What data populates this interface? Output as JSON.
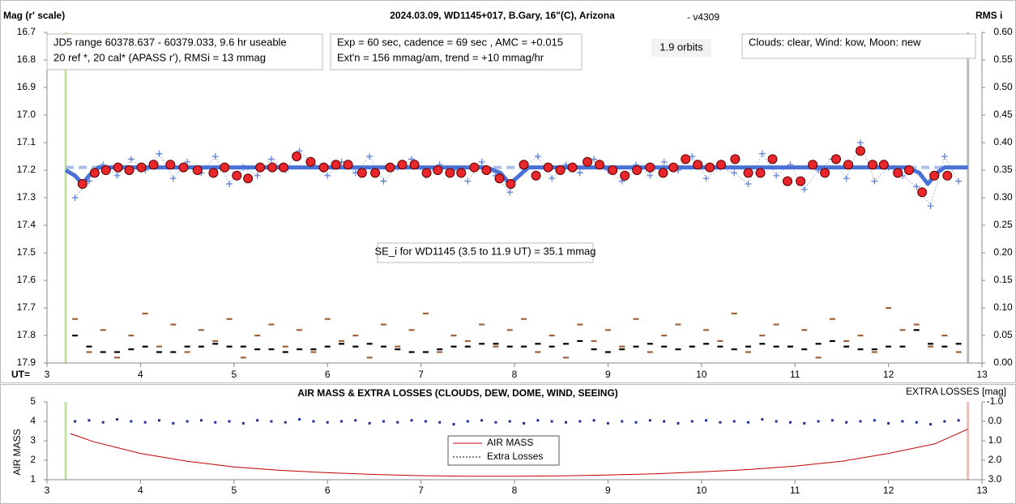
{
  "chart_data": [
    {
      "type": "scatter",
      "title": "2024.03.09, WD1145+017, B.Gary, 16\"(C), Arizona",
      "subtitle": "- v4309",
      "ylabel": "Mag (r' scale)",
      "y2label": "RMS i",
      "xlabel": "UT=",
      "xlim": [
        3,
        13
      ],
      "xticks": [
        3,
        4,
        5,
        6,
        7,
        8,
        9,
        10,
        11,
        12,
        13
      ],
      "ylim": [
        17.9,
        16.7
      ],
      "yticks": [
        16.7,
        16.8,
        16.9,
        {
          "value": 17,
          "label": "17.0"
        },
        17.1,
        17.2,
        17.3,
        17.4,
        17.5,
        17.6,
        17.7,
        17.8,
        17.9
      ],
      "y2lim": [
        0,
        0.6
      ],
      "y2ticks": [
        {
          "value": 0.6,
          "label": "0.60"
        },
        0.55,
        {
          "value": 0.5,
          "label": "0.50"
        },
        0.45,
        {
          "value": 0.4,
          "label": "0.40"
        },
        0.35,
        {
          "value": 0.3,
          "label": "0.30"
        },
        0.25,
        {
          "value": 0.2,
          "label": "0.20"
        },
        0.15,
        {
          "value": 0.1,
          "label": "0.10"
        },
        0.05,
        {
          "value": 0,
          "label": "0.00"
        }
      ],
      "annotations": [
        [
          "JD5 range 60378.637 - 60379.033, 9.6 hr useable",
          "20 ref *, 20 cal*  (APASS r'), RMSi = 13 mmag"
        ],
        [
          "Exp = 60 sec, cadence = 69 sec , AMC = +0.015",
          "Ext'n = 156 mmag/am, trend = +10 mmag/hr"
        ],
        [
          "1.9 orbits"
        ],
        [
          "Clouds: clear, Wind:  kow, Moon:  new"
        ],
        [
          "SE_i for WD1145 (3.5 to 11.9 UT) = 35.1 mmag"
        ]
      ],
      "vlines": [
        {
          "x": 3.2,
          "color": "#c5e0a5"
        },
        {
          "x": 12.85,
          "color": "#bbbbbb"
        }
      ],
      "series": [
        {
          "style": "dashed-line",
          "color": "#a9bde8",
          "x": [
            3.2,
            12.85
          ],
          "values": [
            17.19,
            17.19
          ]
        },
        {
          "style": "cross",
          "color": "#5b7fd4",
          "connect": true,
          "x": [
            3.3,
            3.45,
            3.6,
            3.75,
            3.9,
            4.05,
            4.2,
            4.35,
            4.5,
            4.65,
            4.8,
            4.95,
            5.1,
            5.25,
            5.4,
            5.55,
            5.7,
            5.85,
            6.0,
            6.15,
            6.3,
            6.45,
            6.6,
            6.75,
            6.9,
            7.05,
            7.2,
            7.35,
            7.5,
            7.65,
            7.8,
            7.95,
            8.1,
            8.25,
            8.4,
            8.55,
            8.7,
            8.85,
            9.0,
            9.15,
            9.3,
            9.45,
            9.6,
            9.75,
            9.9,
            10.05,
            10.2,
            10.35,
            10.5,
            10.65,
            10.8,
            10.95,
            11.1,
            11.25,
            11.4,
            11.55,
            11.7,
            11.85,
            12.0,
            12.15,
            12.3,
            12.45,
            12.6,
            12.75
          ],
          "values": [
            17.3,
            17.24,
            17.18,
            17.22,
            17.16,
            17.2,
            17.14,
            17.23,
            17.17,
            17.21,
            17.15,
            17.25,
            17.19,
            17.22,
            17.16,
            17.2,
            17.13,
            17.18,
            17.22,
            17.17,
            17.21,
            17.15,
            17.24,
            17.19,
            17.16,
            17.22,
            17.18,
            17.2,
            17.24,
            17.17,
            17.22,
            17.28,
            17.19,
            17.15,
            17.23,
            17.18,
            17.21,
            17.16,
            17.2,
            17.24,
            17.18,
            17.22,
            17.17,
            17.2,
            17.15,
            17.23,
            17.19,
            17.21,
            17.25,
            17.14,
            17.22,
            17.18,
            17.27,
            17.2,
            17.16,
            17.23,
            17.1,
            17.24,
            17.19,
            17.22,
            17.26,
            17.33,
            17.15,
            17.24
          ]
        },
        {
          "style": "line",
          "color": "#4a72d6",
          "x": [
            3.2,
            3.3,
            3.38,
            3.45,
            3.55,
            7.7,
            7.85,
            7.95,
            8.05,
            8.15,
            12.2,
            12.33,
            12.42,
            12.52,
            12.6,
            12.85
          ],
          "values": [
            17.2,
            17.22,
            17.25,
            17.22,
            17.19,
            17.19,
            17.21,
            17.25,
            17.22,
            17.19,
            17.19,
            17.21,
            17.25,
            17.21,
            17.19,
            17.19
          ]
        },
        {
          "style": "circle",
          "color": "#e8262b",
          "x": [
            3.38,
            3.51,
            3.63,
            3.76,
            3.88,
            4.01,
            4.14,
            4.32,
            4.46,
            4.61,
            4.78,
            4.9,
            5.03,
            5.15,
            5.28,
            5.41,
            5.53,
            5.67,
            5.82,
            5.96,
            6.09,
            6.22,
            6.37,
            6.51,
            6.67,
            6.8,
            6.93,
            7.06,
            7.18,
            7.31,
            7.43,
            7.57,
            7.7,
            7.84,
            7.96,
            8.1,
            8.23,
            8.36,
            8.49,
            8.62,
            8.78,
            8.91,
            9.05,
            9.18,
            9.31,
            9.45,
            9.59,
            9.7,
            9.83,
            9.96,
            10.09,
            10.21,
            10.36,
            10.5,
            10.63,
            10.76,
            10.92,
            11.06,
            11.19,
            11.32,
            11.44,
            11.57,
            11.7,
            11.83,
            11.95,
            12.1,
            12.22,
            12.36,
            12.49,
            12.63
          ],
          "values": [
            17.25,
            17.21,
            17.2,
            17.19,
            17.2,
            17.19,
            17.18,
            17.18,
            17.19,
            17.2,
            17.21,
            17.19,
            17.22,
            17.23,
            17.19,
            17.19,
            17.19,
            17.15,
            17.17,
            17.19,
            17.18,
            17.18,
            17.21,
            17.21,
            17.19,
            17.18,
            17.18,
            17.21,
            17.2,
            17.21,
            17.21,
            17.19,
            17.2,
            17.23,
            17.25,
            17.18,
            17.22,
            17.19,
            17.2,
            17.19,
            17.17,
            17.18,
            17.2,
            17.22,
            17.2,
            17.19,
            17.21,
            17.19,
            17.16,
            17.18,
            17.19,
            17.18,
            17.16,
            17.21,
            17.21,
            17.16,
            17.24,
            17.24,
            17.18,
            17.21,
            17.16,
            17.18,
            17.13,
            17.18,
            17.18,
            17.21,
            17.2,
            17.28,
            17.22,
            17.22
          ]
        },
        {
          "style": "dash",
          "color": "#a0623a",
          "axis": "y2",
          "x": [
            3.3,
            3.45,
            3.6,
            3.75,
            3.9,
            4.05,
            4.2,
            4.35,
            4.5,
            4.65,
            4.8,
            4.95,
            5.1,
            5.25,
            5.4,
            5.55,
            5.7,
            5.85,
            6.0,
            6.15,
            6.3,
            6.45,
            6.6,
            6.75,
            6.9,
            7.05,
            7.2,
            7.35,
            7.5,
            7.65,
            7.8,
            7.95,
            8.1,
            8.25,
            8.4,
            8.55,
            8.7,
            8.85,
            9.0,
            9.15,
            9.3,
            9.45,
            9.6,
            9.75,
            9.9,
            10.05,
            10.2,
            10.35,
            10.5,
            10.65,
            10.8,
            10.95,
            11.1,
            11.25,
            11.4,
            11.55,
            11.7,
            11.85,
            12.0,
            12.15,
            12.3,
            12.45,
            12.6,
            12.75
          ],
          "values": [
            0.08,
            0.02,
            0.06,
            0.01,
            0.05,
            0.09,
            0.03,
            0.07,
            0.02,
            0.06,
            0.04,
            0.08,
            0.01,
            0.05,
            0.07,
            0.03,
            0.06,
            0.02,
            0.08,
            0.04,
            0.05,
            0.01,
            0.07,
            0.03,
            0.06,
            0.09,
            0.02,
            0.05,
            0.04,
            0.07,
            0.03,
            0.06,
            0.08,
            0.02,
            0.05,
            0.01,
            0.07,
            0.04,
            0.06,
            0.03,
            0.08,
            0.02,
            0.05,
            0.07,
            0.03,
            0.06,
            0.04,
            0.09,
            0.02,
            0.05,
            0.07,
            0.03,
            0.06,
            0.01,
            0.08,
            0.04,
            0.05,
            0.02,
            0.1,
            0.06,
            0.07,
            0.03,
            0.05,
            0.02
          ]
        },
        {
          "style": "dash",
          "color": "#000000",
          "axis": "y2",
          "x": [
            3.3,
            3.45,
            3.6,
            3.75,
            3.9,
            4.05,
            4.2,
            4.35,
            4.5,
            4.65,
            4.8,
            4.95,
            5.1,
            5.25,
            5.4,
            5.55,
            5.7,
            5.85,
            6.0,
            6.15,
            6.3,
            6.45,
            6.6,
            6.75,
            6.9,
            7.05,
            7.2,
            7.35,
            7.5,
            7.65,
            7.8,
            7.95,
            8.1,
            8.25,
            8.4,
            8.55,
            8.7,
            8.85,
            9.0,
            9.15,
            9.3,
            9.45,
            9.6,
            9.75,
            9.9,
            10.05,
            10.2,
            10.35,
            10.5,
            10.65,
            10.8,
            10.95,
            11.1,
            11.25,
            11.4,
            11.55,
            11.7,
            11.85,
            12.0,
            12.15,
            12.3,
            12.45,
            12.6,
            12.75
          ],
          "values": [
            0.05,
            0.03,
            0.02,
            0.02,
            0.025,
            0.03,
            0.02,
            0.02,
            0.03,
            0.03,
            0.035,
            0.03,
            0.03,
            0.025,
            0.025,
            0.02,
            0.025,
            0.025,
            0.03,
            0.035,
            0.03,
            0.035,
            0.03,
            0.025,
            0.02,
            0.02,
            0.025,
            0.03,
            0.03,
            0.035,
            0.035,
            0.03,
            0.03,
            0.035,
            0.03,
            0.035,
            0.04,
            0.025,
            0.02,
            0.025,
            0.03,
            0.035,
            0.03,
            0.025,
            0.03,
            0.035,
            0.03,
            0.025,
            0.03,
            0.035,
            0.03,
            0.03,
            0.025,
            0.035,
            0.04,
            0.03,
            0.025,
            0.025,
            0.03,
            0.03,
            0.06,
            0.035,
            0.03,
            0.035
          ]
        }
      ]
    },
    {
      "type": "line",
      "title": "AIR MASS & EXTRA LOSSES (CLOUDS, DEW, DOME, WIND, SEEING)",
      "ylabel": "AIR MASS",
      "y2label": "EXTRA LOSSES [mag]",
      "xlim": [
        3,
        13
      ],
      "xticks": [
        3,
        4,
        5,
        6,
        7,
        8,
        9,
        10,
        11,
        12,
        13
      ],
      "ylim": [
        1,
        5
      ],
      "yticks": [
        1,
        2,
        3,
        4,
        5
      ],
      "y2lim": [
        3,
        -1
      ],
      "y2ticks": [
        {
          "value": -1,
          "label": "-1.0"
        },
        {
          "value": 0,
          "label": "0.0"
        },
        {
          "value": 1,
          "label": "1.0"
        },
        {
          "value": 2,
          "label": "2.0"
        },
        {
          "value": 3,
          "label": "3.0"
        }
      ],
      "vlines": [
        {
          "x": 3.2,
          "color": "#c5e0a5"
        },
        {
          "x": 12.85,
          "color": "#f4b6b6"
        }
      ],
      "series": [
        {
          "name": "AIR MASS",
          "style": "line",
          "color": "#c00000",
          "x": [
            3.25,
            3.5,
            4,
            4.5,
            5,
            5.5,
            6,
            6.5,
            7,
            7.5,
            8,
            8.5,
            9,
            9.5,
            10,
            10.5,
            11,
            11.5,
            12,
            12.5,
            12.85
          ],
          "values": [
            3.37,
            2.95,
            2.35,
            1.95,
            1.66,
            1.48,
            1.36,
            1.27,
            1.21,
            1.18,
            1.18,
            1.2,
            1.24,
            1.3,
            1.4,
            1.52,
            1.7,
            1.95,
            2.35,
            2.85,
            3.6
          ]
        },
        {
          "name": "Extra Losses",
          "style": "dot",
          "color": "#1f2e9a",
          "axis": "y2",
          "x": [
            3.3,
            3.45,
            3.6,
            3.75,
            3.9,
            4.05,
            4.2,
            4.35,
            4.5,
            4.65,
            4.8,
            4.95,
            5.1,
            5.25,
            5.4,
            5.55,
            5.7,
            5.85,
            6.0,
            6.15,
            6.3,
            6.45,
            6.6,
            6.75,
            6.9,
            7.05,
            7.2,
            7.35,
            7.5,
            7.65,
            7.8,
            7.95,
            8.1,
            8.25,
            8.4,
            8.55,
            8.7,
            8.85,
            9.0,
            9.15,
            9.3,
            9.45,
            9.6,
            9.75,
            9.9,
            10.05,
            10.2,
            10.35,
            10.5,
            10.65,
            10.8,
            10.95,
            11.1,
            11.25,
            11.4,
            11.55,
            11.7,
            11.85,
            12.0,
            12.15,
            12.3,
            12.45,
            12.6,
            12.75
          ],
          "values": [
            0.0,
            -0.05,
            0.05,
            -0.1,
            0.0,
            0.05,
            -0.05,
            0.1,
            0.0,
            -0.05,
            0.05,
            0.0,
            0.1,
            -0.05,
            0.0,
            0.05,
            -0.1,
            0.0,
            0.05,
            0.0,
            -0.05,
            0.1,
            0.0,
            0.05,
            -0.05,
            0.0,
            0.05,
            0.15,
            0.0,
            -0.05,
            0.05,
            0.0,
            0.1,
            -0.05,
            0.0,
            0.05,
            0.0,
            -0.05,
            0.1,
            0.0,
            0.05,
            -0.05,
            0.0,
            0.1,
            0.0,
            -0.05,
            0.05,
            0.0,
            0.05,
            -0.1,
            0.0,
            0.05,
            0.1,
            0.0,
            -0.05,
            0.05,
            0.0,
            -0.05,
            0.1,
            0.0,
            0.05,
            0.15,
            0.0,
            -0.05
          ]
        }
      ]
    }
  ]
}
